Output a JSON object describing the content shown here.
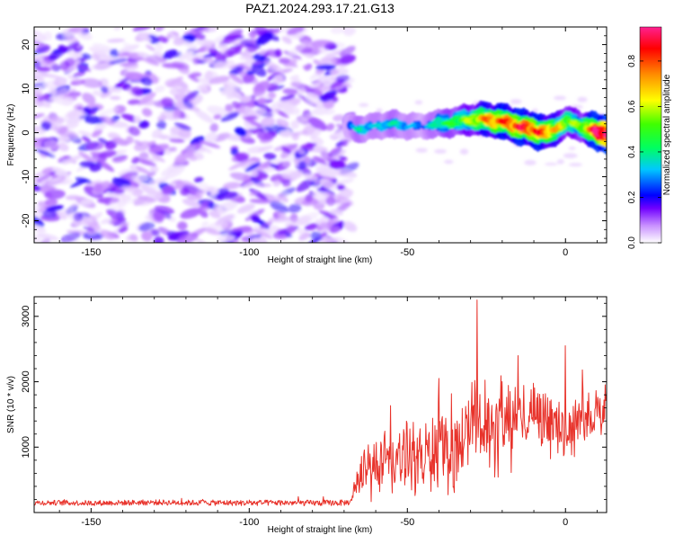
{
  "chart_data": [
    {
      "type": "heatmap",
      "title": "PAZ1.2024.293.17.21.G13",
      "xlabel": "Height of straight line (km)",
      "ylabel": "Frequency (Hz)",
      "xlim": [
        -168,
        13
      ],
      "ylim": [
        -25,
        24
      ],
      "xticks": [
        "-150",
        "-100",
        "-50",
        "0"
      ],
      "xtick_values": [
        -150,
        -100,
        -50,
        0
      ],
      "yticks": [
        "-20",
        "-10",
        "0",
        "10",
        "20"
      ],
      "ytick_values": [
        -20,
        -10,
        0,
        10,
        20
      ],
      "colorbar": {
        "label": "Normalized spectral amplitude",
        "range": [
          0,
          0.95
        ],
        "ticks": [
          "0.0",
          "0.2",
          "0.4",
          "0.6",
          "0.8"
        ],
        "tick_values": [
          0.0,
          0.2,
          0.4,
          0.6,
          0.8
        ]
      },
      "noise_region": {
        "x_range": [
          -168,
          -68
        ],
        "freq_range": [
          -25,
          24
        ],
        "level_range": [
          0.02,
          0.2
        ]
      },
      "ridge": {
        "x": [
          -69,
          -65,
          -60,
          -55,
          -50,
          -45,
          -40,
          -35,
          -30,
          -25,
          -20,
          -15,
          -10,
          -5,
          0,
          5,
          10,
          13
        ],
        "freq": [
          1.5,
          0.8,
          1.5,
          2.0,
          1.5,
          1.5,
          2.0,
          2.5,
          3.0,
          3.0,
          2.5,
          1.5,
          0.5,
          0.0,
          2.5,
          1.5,
          0.0,
          0.0
        ],
        "amplitude": [
          0.25,
          0.35,
          0.3,
          0.35,
          0.3,
          0.25,
          0.4,
          0.45,
          0.55,
          0.7,
          0.75,
          0.8,
          0.8,
          0.7,
          0.55,
          0.5,
          0.9,
          0.95
        ]
      }
    },
    {
      "type": "line",
      "xlabel": "Height of straight line (km)",
      "ylabel": "SNR (10 * v/v)",
      "xlim": [
        -168,
        13
      ],
      "ylim": [
        0,
        3300
      ],
      "xticks": [
        "-150",
        "-100",
        "-50",
        "0"
      ],
      "xtick_values": [
        -150,
        -100,
        -50,
        0
      ],
      "yticks": [
        "1000",
        "2000",
        "3000"
      ],
      "ytick_values": [
        1000,
        2000,
        3000
      ],
      "color": "#e8332b",
      "x": [
        -168,
        -160,
        -150,
        -140,
        -130,
        -120,
        -110,
        -100,
        -90,
        -80,
        -70,
        -68,
        -65,
        -60,
        -55,
        -50,
        -45,
        -40,
        -35,
        -30,
        -28,
        -25,
        -20,
        -15,
        -12,
        -10,
        -5,
        0,
        5,
        10,
        13
      ],
      "y": [
        150,
        150,
        145,
        150,
        155,
        150,
        150,
        145,
        150,
        145,
        150,
        160,
        600,
        800,
        700,
        850,
        800,
        1000,
        900,
        1300,
        1500,
        1250,
        1400,
        1500,
        1500,
        1600,
        1400,
        1200,
        1500,
        1500,
        1600
      ],
      "peaks": {
        "x": [
          -28,
          0,
          -15,
          -40
        ],
        "y": [
          3250,
          2550,
          2400,
          2050
        ]
      },
      "noise_amplitude": {
        "x": [
          -168,
          -68,
          -65,
          -50,
          -30,
          0,
          13
        ],
        "y": [
          40,
          45,
          250,
          450,
          500,
          350,
          300
        ]
      }
    }
  ]
}
